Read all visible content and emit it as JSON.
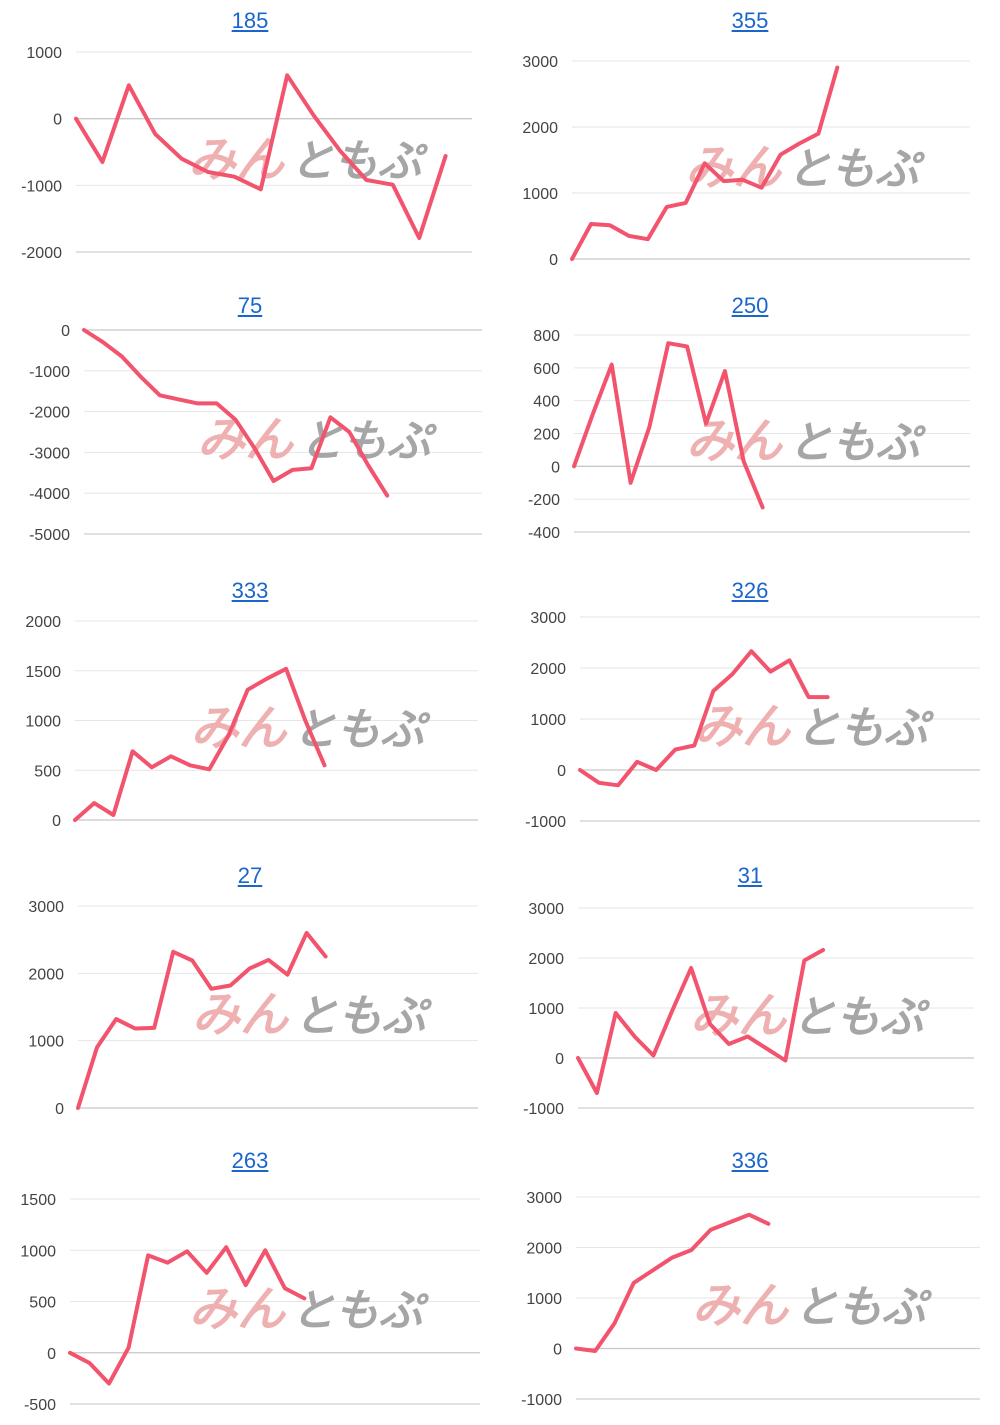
{
  "colors": {
    "series": "#f2546e",
    "title": "#1a66cc",
    "watermark_red": "#eeb0b0",
    "watermark_gray": "#a6a6a6"
  },
  "watermark": {
    "text_red": "みん",
    "text_gray": "ともぷ"
  },
  "chart_data": [
    {
      "type": "line",
      "title": "185",
      "ylim": [
        -2000,
        1000
      ],
      "yticks": [
        1000,
        0,
        -1000,
        -2000
      ],
      "x_count": 16,
      "grid": true,
      "series": [
        {
          "values": [
            0,
            -650,
            500,
            -230,
            -600,
            -800,
            -870,
            -1060,
            650,
            50,
            -480,
            -920,
            -990,
            -1790,
            -560
          ]
        }
      ]
    },
    {
      "type": "line",
      "title": "355",
      "ylim": [
        0,
        3000
      ],
      "yticks": [
        3000,
        2000,
        1000,
        0
      ],
      "x_count": 22,
      "grid": true,
      "series": [
        {
          "values": [
            0,
            530,
            510,
            350,
            300,
            790,
            850,
            1450,
            1180,
            1200,
            1080,
            1580,
            1750,
            1900,
            2900
          ]
        }
      ]
    },
    {
      "type": "line",
      "title": "75",
      "ylim": [
        -5000,
        0
      ],
      "yticks": [
        0,
        -1000,
        -2000,
        -3000,
        -4000,
        -5000
      ],
      "x_count": 22,
      "grid": true,
      "series": [
        {
          "values": [
            0,
            -300,
            -650,
            -1150,
            -1600,
            -1700,
            -1800,
            -1800,
            -2200,
            -2900,
            -3700,
            -3430,
            -3390,
            -2140,
            -2500,
            -3320,
            -4060
          ]
        }
      ]
    },
    {
      "type": "line",
      "title": "250",
      "ylim": [
        -400,
        800
      ],
      "yticks": [
        800,
        600,
        400,
        200,
        0,
        -200,
        -400
      ],
      "x_count": 22,
      "grid": true,
      "series": [
        {
          "values": [
            0,
            320,
            620,
            -100,
            240,
            750,
            730,
            260,
            580,
            30,
            -250
          ]
        }
      ]
    },
    {
      "type": "line",
      "title": "333",
      "ylim": [
        0,
        2000
      ],
      "yticks": [
        2000,
        1500,
        1000,
        500,
        0
      ],
      "x_count": 22,
      "grid": true,
      "series": [
        {
          "values": [
            0,
            170,
            50,
            690,
            530,
            640,
            550,
            510,
            850,
            1310,
            1420,
            1520,
            1000,
            550
          ]
        }
      ]
    },
    {
      "type": "line",
      "title": "326",
      "ylim": [
        -1000,
        3000
      ],
      "yticks": [
        3000,
        2000,
        1000,
        0,
        -1000
      ],
      "x_count": 22,
      "grid": true,
      "series": [
        {
          "values": [
            0,
            -250,
            -300,
            160,
            0,
            400,
            480,
            1550,
            1880,
            2330,
            1930,
            2150,
            1430,
            1430
          ]
        }
      ]
    },
    {
      "type": "line",
      "title": "27",
      "ylim": [
        0,
        3000
      ],
      "yticks": [
        3000,
        2000,
        1000,
        0
      ],
      "x_count": 22,
      "grid": true,
      "series": [
        {
          "values": [
            0,
            900,
            1320,
            1180,
            1190,
            2320,
            2190,
            1770,
            1820,
            2070,
            2200,
            1980,
            2600,
            2250
          ]
        }
      ]
    },
    {
      "type": "line",
      "title": "31",
      "ylim": [
        -1000,
        3000
      ],
      "yticks": [
        3000,
        2000,
        1000,
        0,
        -1000
      ],
      "x_count": 22,
      "grid": true,
      "series": [
        {
          "values": [
            0,
            -700,
            900,
            430,
            50,
            950,
            1800,
            680,
            280,
            430,
            190,
            -50,
            1950,
            2160
          ]
        }
      ]
    },
    {
      "type": "line",
      "title": "263",
      "ylim": [
        -500,
        1500
      ],
      "yticks": [
        1500,
        1000,
        500,
        0,
        -500
      ],
      "x_count": 22,
      "grid": true,
      "series": [
        {
          "values": [
            0,
            -100,
            -300,
            50,
            950,
            880,
            990,
            780,
            1030,
            660,
            1000,
            630,
            530
          ]
        }
      ]
    },
    {
      "type": "line",
      "title": "336",
      "ylim": [
        -1000,
        3000
      ],
      "yticks": [
        3000,
        2000,
        1000,
        0,
        -1000
      ],
      "x_count": 22,
      "grid": true,
      "series": [
        {
          "values": [
            0,
            -50,
            500,
            1300,
            1550,
            1800,
            1950,
            2350,
            2500,
            2650,
            2470
          ]
        }
      ]
    }
  ]
}
